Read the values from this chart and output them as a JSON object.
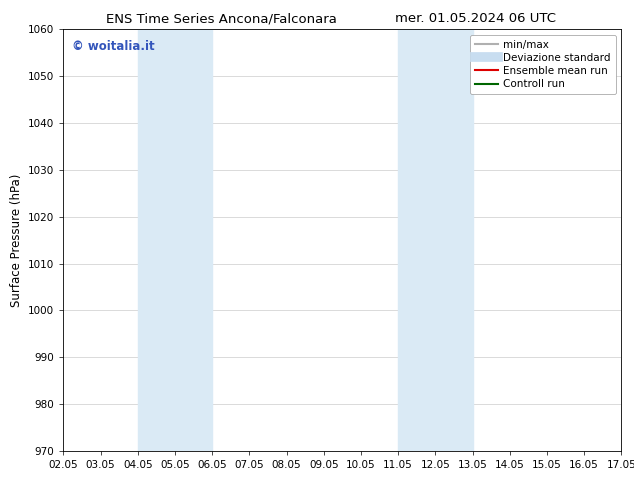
{
  "title_left": "ENS Time Series Ancona/Falconara",
  "title_right": "mer. 01.05.2024 06 UTC",
  "ylabel": "Surface Pressure (hPa)",
  "ylim": [
    970,
    1060
  ],
  "yticks": [
    970,
    980,
    990,
    1000,
    1010,
    1020,
    1030,
    1040,
    1050,
    1060
  ],
  "xtick_labels": [
    "02.05",
    "03.05",
    "04.05",
    "05.05",
    "06.05",
    "07.05",
    "08.05",
    "09.05",
    "10.05",
    "11.05",
    "12.05",
    "13.05",
    "14.05",
    "15.05",
    "16.05",
    "17.05"
  ],
  "xtick_positions": [
    0,
    1,
    2,
    3,
    4,
    5,
    6,
    7,
    8,
    9,
    10,
    11,
    12,
    13,
    14,
    15
  ],
  "shaded_regions": [
    {
      "xstart": 2.0,
      "xend": 2.5,
      "color": "#daeaf5"
    },
    {
      "xstart": 2.5,
      "xend": 4.0,
      "color": "#daeaf5"
    },
    {
      "xstart": 9.0,
      "xend": 9.5,
      "color": "#daeaf5"
    },
    {
      "xstart": 9.5,
      "xend": 11.0,
      "color": "#daeaf5"
    }
  ],
  "watermark_text": "© woitalia.it",
  "watermark_color": "#3355bb",
  "legend_entries": [
    {
      "label": "min/max",
      "color": "#b0b0b0",
      "linewidth": 1.5,
      "linestyle": "-"
    },
    {
      "label": "Deviazione standard",
      "color": "#c8ddf0",
      "linewidth": 7,
      "linestyle": "-"
    },
    {
      "label": "Ensemble mean run",
      "color": "#dd0000",
      "linewidth": 1.5,
      "linestyle": "-"
    },
    {
      "label": "Controll run",
      "color": "#006600",
      "linewidth": 1.5,
      "linestyle": "-"
    }
  ],
  "background_color": "#ffffff",
  "grid_color": "#cccccc",
  "title_fontsize": 9.5,
  "axis_label_fontsize": 8.5,
  "tick_fontsize": 7.5,
  "watermark_fontsize": 8.5,
  "legend_fontsize": 7.5
}
